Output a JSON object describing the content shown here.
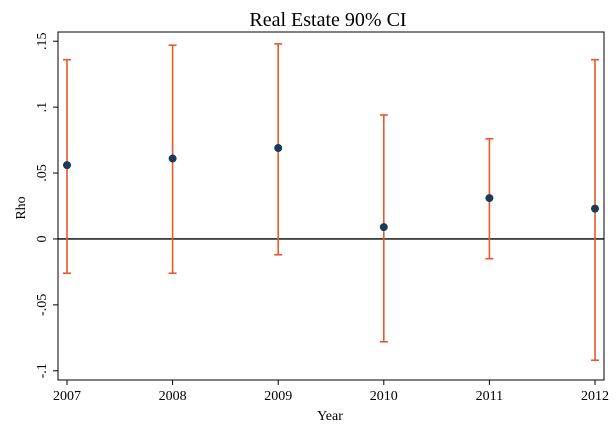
{
  "chart_data": {
    "type": "scatter",
    "title": "Real Estate 90% CI",
    "xlabel": "Year",
    "ylabel": "Rho",
    "x": [
      2007,
      2008,
      2009,
      2010,
      2011,
      2012
    ],
    "x_tick_labels": [
      "2007",
      "2008",
      "2009",
      "2010",
      "2011",
      "2012"
    ],
    "y_ticks": [
      -0.1,
      -0.05,
      0,
      0.05,
      0.1,
      0.15
    ],
    "y_tick_labels": [
      "-.1",
      "-.05",
      "0",
      ".05",
      ".1",
      ".15"
    ],
    "xlim": [
      2007,
      2012
    ],
    "ylim": [
      -0.107,
      0.157
    ],
    "grid": false,
    "legend": "none",
    "reference_line_y": 0,
    "series": [
      {
        "values": [
          0.056,
          0.061,
          0.069,
          0.009,
          0.031,
          0.023
        ],
        "ci_lower": [
          -0.026,
          -0.026,
          -0.012,
          -0.078,
          -0.015,
          -0.092
        ],
        "ci_upper": [
          0.136,
          0.147,
          0.148,
          0.094,
          0.076,
          0.136
        ]
      }
    ],
    "colors": {
      "point": "#1a3a5c",
      "error_bar": "#e8592a",
      "reference_line": "#000000",
      "axis": "#000000"
    }
  }
}
